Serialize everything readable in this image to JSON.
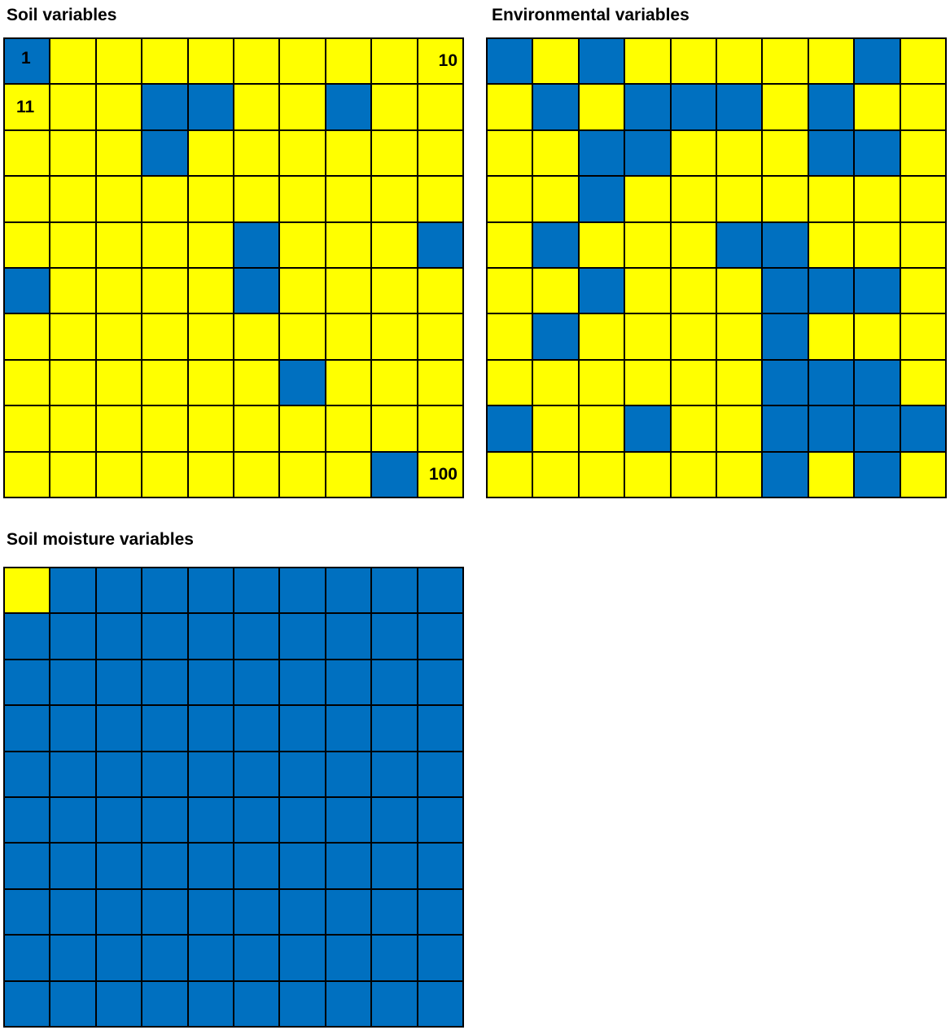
{
  "chart_data": [
    {
      "type": "heatmap",
      "title": "Soil variables",
      "rows": 10,
      "cols": 10,
      "colors": {
        "0": "#FFFF00",
        "1": "#0070C0"
      },
      "cell_labels": [
        {
          "row": 0,
          "col": 0,
          "text": "1"
        },
        {
          "row": 0,
          "col": 9,
          "text": "10"
        },
        {
          "row": 1,
          "col": 0,
          "text": "11"
        },
        {
          "row": 9,
          "col": 9,
          "text": "100"
        }
      ],
      "values": [
        [
          1,
          0,
          0,
          0,
          0,
          0,
          0,
          0,
          0,
          0
        ],
        [
          0,
          0,
          0,
          1,
          1,
          0,
          0,
          1,
          0,
          0
        ],
        [
          0,
          0,
          0,
          1,
          0,
          0,
          0,
          0,
          0,
          0
        ],
        [
          0,
          0,
          0,
          0,
          0,
          0,
          0,
          0,
          0,
          0
        ],
        [
          0,
          0,
          0,
          0,
          0,
          1,
          0,
          0,
          0,
          1
        ],
        [
          1,
          0,
          0,
          0,
          0,
          1,
          0,
          0,
          0,
          0
        ],
        [
          0,
          0,
          0,
          0,
          0,
          0,
          0,
          0,
          0,
          0
        ],
        [
          0,
          0,
          0,
          0,
          0,
          0,
          1,
          0,
          0,
          0
        ],
        [
          0,
          0,
          0,
          0,
          0,
          0,
          0,
          0,
          0,
          0
        ],
        [
          0,
          0,
          0,
          0,
          0,
          0,
          0,
          0,
          1,
          0
        ]
      ]
    },
    {
      "type": "heatmap",
      "title": "Environmental variables",
      "rows": 10,
      "cols": 10,
      "colors": {
        "0": "#FFFF00",
        "1": "#0070C0"
      },
      "cell_labels": [],
      "values": [
        [
          1,
          0,
          1,
          0,
          0,
          0,
          0,
          0,
          1,
          0
        ],
        [
          0,
          1,
          0,
          1,
          1,
          1,
          0,
          1,
          0,
          0
        ],
        [
          0,
          0,
          1,
          1,
          0,
          0,
          0,
          1,
          1,
          0
        ],
        [
          0,
          0,
          1,
          0,
          0,
          0,
          0,
          0,
          0,
          0
        ],
        [
          0,
          1,
          0,
          0,
          0,
          1,
          1,
          0,
          0,
          0
        ],
        [
          0,
          0,
          1,
          0,
          0,
          0,
          1,
          1,
          1,
          0
        ],
        [
          0,
          1,
          0,
          0,
          0,
          0,
          1,
          0,
          0,
          0
        ],
        [
          0,
          0,
          0,
          0,
          0,
          0,
          1,
          1,
          1,
          0
        ],
        [
          1,
          0,
          0,
          1,
          0,
          0,
          1,
          1,
          1,
          1
        ],
        [
          0,
          0,
          0,
          0,
          0,
          0,
          1,
          0,
          1,
          0
        ]
      ]
    },
    {
      "type": "heatmap",
      "title": "Soil moisture variables",
      "rows": 10,
      "cols": 10,
      "colors": {
        "0": "#FFFF00",
        "1": "#0070C0"
      },
      "cell_labels": [],
      "values": [
        [
          0,
          1,
          1,
          1,
          1,
          1,
          1,
          1,
          1,
          1
        ],
        [
          1,
          1,
          1,
          1,
          1,
          1,
          1,
          1,
          1,
          1
        ],
        [
          1,
          1,
          1,
          1,
          1,
          1,
          1,
          1,
          1,
          1
        ],
        [
          1,
          1,
          1,
          1,
          1,
          1,
          1,
          1,
          1,
          1
        ],
        [
          1,
          1,
          1,
          1,
          1,
          1,
          1,
          1,
          1,
          1
        ],
        [
          1,
          1,
          1,
          1,
          1,
          1,
          1,
          1,
          1,
          1
        ],
        [
          1,
          1,
          1,
          1,
          1,
          1,
          1,
          1,
          1,
          1
        ],
        [
          1,
          1,
          1,
          1,
          1,
          1,
          1,
          1,
          1,
          1
        ],
        [
          1,
          1,
          1,
          1,
          1,
          1,
          1,
          1,
          1,
          1
        ],
        [
          1,
          1,
          1,
          1,
          1,
          1,
          1,
          1,
          1,
          1
        ]
      ]
    }
  ]
}
